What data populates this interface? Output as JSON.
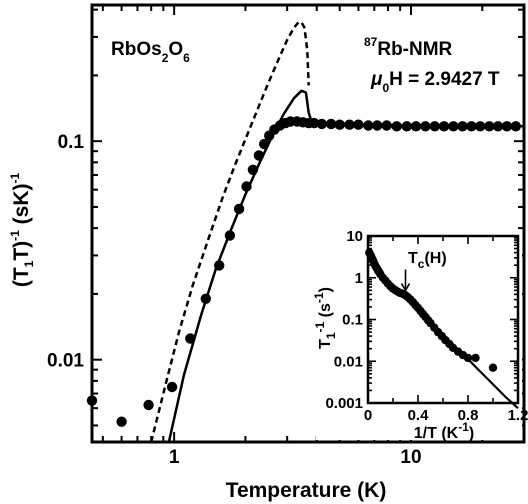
{
  "chart_data": [
    {
      "type": "scatter",
      "xlabel": "Temperature (K)",
      "ylabel": "(T1T)^-1 (sK)^-1",
      "xscale": "log",
      "yscale": "log",
      "xlim": [
        0.45,
        30
      ],
      "ylim": [
        0.0042,
        0.42
      ],
      "x_ticks": [
        1,
        10
      ],
      "x_tick_labels": [
        "1",
        "10"
      ],
      "y_ticks": [
        0.01,
        0.1
      ],
      "y_tick_labels": [
        "0.01",
        "0.1"
      ],
      "annotations": {
        "compound": {
          "text": "RbOs",
          "sub1": "2",
          "mid": "O",
          "sub2": "6"
        },
        "nucleus": {
          "sup": "87",
          "text": "Rb-NMR"
        },
        "field": {
          "mu": "μ",
          "sub": "0",
          "text": "H = 2.9427 T"
        }
      },
      "series": [
        {
          "style": "points",
          "x": [
            0.45,
            0.6,
            0.78,
            0.98,
            1.17,
            1.36,
            1.55,
            1.72,
            1.88,
            2.02,
            2.15,
            2.28,
            2.4,
            2.52,
            2.65,
            2.8,
            2.95,
            3.1,
            3.3,
            3.5,
            3.7,
            3.9,
            4.2,
            4.6,
            5.0,
            5.5,
            6.0,
            6.6,
            7.2,
            7.9,
            8.7,
            9.6,
            10.5,
            11.5,
            12.6,
            13.8,
            15.1,
            16.5,
            18.0,
            19.6,
            21.4,
            23.3,
            25.4,
            27.7
          ],
          "y": [
            0.0065,
            0.0052,
            0.0062,
            0.0075,
            0.0125,
            0.019,
            0.027,
            0.037,
            0.049,
            0.062,
            0.074,
            0.086,
            0.097,
            0.106,
            0.113,
            0.118,
            0.121,
            0.123,
            0.123,
            0.122,
            0.121,
            0.121,
            0.12,
            0.12,
            0.119,
            0.119,
            0.119,
            0.118,
            0.118,
            0.118,
            0.117,
            0.117,
            0.117,
            0.117,
            0.117,
            0.117,
            0.117,
            0.117,
            0.117,
            0.117,
            0.117,
            0.117,
            0.117,
            0.117
          ]
        },
        {
          "style": "solid",
          "x": [
            0.95,
            1.1,
            1.3,
            1.5,
            1.75,
            2.0,
            2.3,
            2.6,
            2.9,
            3.2,
            3.45,
            3.6,
            3.7,
            3.8,
            4.0,
            5.0,
            7.0,
            10.0,
            15.0,
            20.0,
            30.0
          ],
          "y": [
            0.0042,
            0.0085,
            0.016,
            0.026,
            0.04,
            0.057,
            0.08,
            0.106,
            0.133,
            0.157,
            0.17,
            0.167,
            0.135,
            0.123,
            0.121,
            0.12,
            0.119,
            0.118,
            0.117,
            0.117,
            0.117
          ]
        },
        {
          "style": "dashed",
          "x": [
            0.8,
            0.92,
            1.05,
            1.2,
            1.4,
            1.6,
            1.8,
            2.0,
            2.25,
            2.5,
            2.75,
            3.0,
            3.2,
            3.35,
            3.45,
            3.55,
            3.65,
            3.7
          ],
          "y": [
            0.0042,
            0.0077,
            0.0135,
            0.022,
            0.036,
            0.055,
            0.077,
            0.102,
            0.14,
            0.185,
            0.235,
            0.29,
            0.33,
            0.35,
            0.35,
            0.33,
            0.26,
            0.18
          ]
        }
      ]
    },
    {
      "type": "scatter",
      "xlabel": "1/T (K^-1)",
      "ylabel": "T1^-1 (s^-1)",
      "yscale": "log",
      "xlim": [
        0,
        1.2
      ],
      "ylim": [
        0.001,
        10
      ],
      "x_ticks": [
        0,
        0.4,
        0.8,
        1.2
      ],
      "x_tick_labels": [
        "0",
        "0.4",
        "0.8",
        "1.2"
      ],
      "y_ticks": [
        0.001,
        0.01,
        0.1,
        1,
        10
      ],
      "y_tick_labels": [
        "0.001",
        "0.01",
        "0.1",
        "1",
        "10"
      ],
      "annotations": {
        "tc": {
          "text": "T",
          "sub": "c",
          "rest": "(H)",
          "x": 0.3,
          "y": 0.42
        }
      },
      "series": [
        {
          "style": "points",
          "x": [
            0.01,
            0.02,
            0.03,
            0.04,
            0.05,
            0.06,
            0.07,
            0.08,
            0.09,
            0.1,
            0.12,
            0.14,
            0.16,
            0.18,
            0.2,
            0.22,
            0.24,
            0.26,
            0.28,
            0.3,
            0.32,
            0.34,
            0.36,
            0.38,
            0.4,
            0.42,
            0.44,
            0.46,
            0.48,
            0.5,
            0.53,
            0.56,
            0.59,
            0.62,
            0.65,
            0.68,
            0.72,
            0.76,
            0.8,
            0.86,
            1.0
          ],
          "y": [
            4.0,
            3.5,
            3.0,
            2.6,
            2.2,
            1.9,
            1.7,
            1.5,
            1.35,
            1.2,
            1.0,
            0.85,
            0.72,
            0.62,
            0.55,
            0.5,
            0.46,
            0.43,
            0.41,
            0.38,
            0.34,
            0.3,
            0.26,
            0.22,
            0.19,
            0.16,
            0.135,
            0.115,
            0.097,
            0.082,
            0.064,
            0.05,
            0.04,
            0.032,
            0.026,
            0.021,
            0.017,
            0.014,
            0.012,
            0.012,
            0.007
          ]
        },
        {
          "style": "solid",
          "x": [
            0.0,
            0.03,
            0.06,
            0.1,
            0.15,
            0.2,
            0.25,
            0.3,
            0.35,
            0.4,
            0.5,
            0.6,
            0.7,
            0.8,
            0.9,
            1.0,
            1.1,
            1.2
          ],
          "y": [
            4.5,
            3.2,
            2.3,
            1.5,
            0.95,
            0.62,
            0.46,
            0.38,
            0.28,
            0.19,
            0.09,
            0.045,
            0.022,
            0.0112,
            0.0056,
            0.0028,
            0.0014,
            0.00075
          ]
        }
      ]
    }
  ]
}
